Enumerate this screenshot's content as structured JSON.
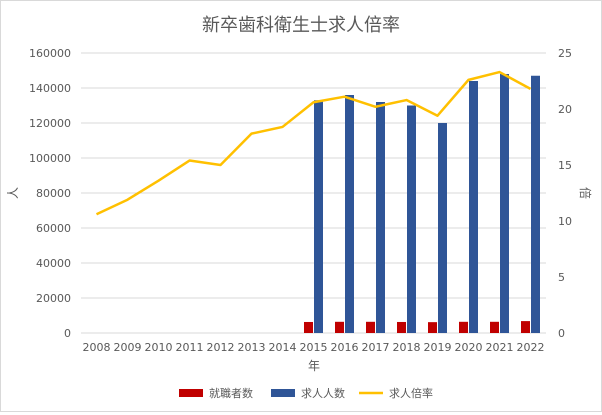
{
  "chart_data": {
    "type": "bar+line",
    "title": "新卒歯科衛生士求人倍率",
    "xlabel": "年",
    "ylabel_left": "人",
    "ylabel_right": "倍",
    "categories": [
      "2008",
      "2009",
      "2010",
      "2011",
      "2012",
      "2013",
      "2014",
      "2015",
      "2016",
      "2017",
      "2018",
      "2019",
      "2020",
      "2021",
      "2022"
    ],
    "ylim_left": [
      0,
      160000
    ],
    "yticks_left": [
      "0",
      "20000",
      "40000",
      "60000",
      "80000",
      "100000",
      "120000",
      "140000",
      "160000"
    ],
    "ylim_right": [
      0,
      25
    ],
    "yticks_right": [
      "0",
      "5",
      "10",
      "15",
      "20",
      "25"
    ],
    "grid": true,
    "legend_position": "bottom",
    "series": [
      {
        "name": "就職者数",
        "kind": "bar",
        "axis": "left",
        "color": "#c00000",
        "values": [
          null,
          null,
          null,
          null,
          null,
          null,
          null,
          6300,
          6400,
          6400,
          6300,
          6200,
          6400,
          6400,
          6800
        ]
      },
      {
        "name": "求人人数",
        "kind": "bar",
        "axis": "left",
        "color": "#2f5597",
        "values": [
          null,
          null,
          null,
          null,
          null,
          null,
          null,
          133000,
          136000,
          132000,
          130000,
          120000,
          144000,
          148000,
          147000
        ]
      },
      {
        "name": "求人倍率",
        "kind": "line",
        "axis": "right",
        "color": "#ffc000",
        "values": [
          10.6,
          11.9,
          13.6,
          15.4,
          15.0,
          17.8,
          18.4,
          20.6,
          21.1,
          20.2,
          20.8,
          19.4,
          22.6,
          23.3,
          21.8
        ]
      }
    ]
  }
}
